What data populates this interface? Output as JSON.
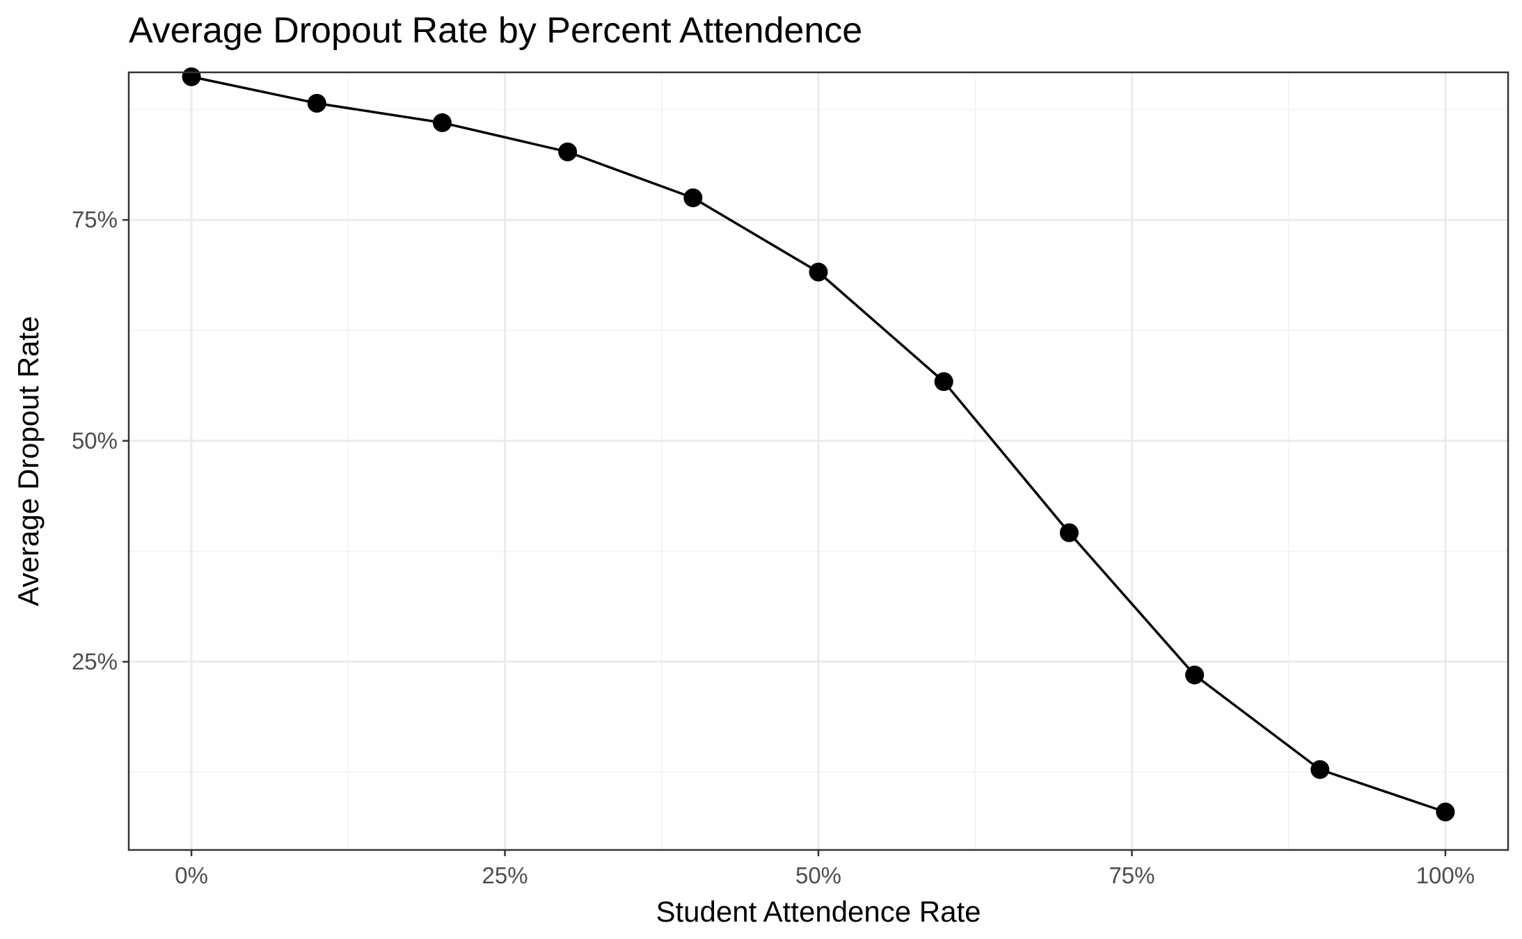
{
  "chart_data": {
    "type": "line",
    "title": "Average Dropout Rate by Percent Attendence",
    "xlabel": "Student Attendence Rate",
    "ylabel": "Average Dropout Rate",
    "x_ticks": [
      {
        "value": 0,
        "label": "0%"
      },
      {
        "value": 25,
        "label": "25%"
      },
      {
        "value": 50,
        "label": "50%"
      },
      {
        "value": 75,
        "label": "75%"
      },
      {
        "value": 100,
        "label": "100%"
      }
    ],
    "y_ticks": [
      {
        "value": 25,
        "label": "25%"
      },
      {
        "value": 50,
        "label": "50%"
      },
      {
        "value": 75,
        "label": "75%"
      }
    ],
    "xlim": [
      -5,
      105
    ],
    "ylim": [
      3.7,
      91.7
    ],
    "grid": true,
    "legend": "none",
    "x": [
      0,
      10,
      20,
      30,
      40,
      50,
      60,
      70,
      80,
      90,
      100
    ],
    "series": [
      {
        "values": [
          91.2,
          88.2,
          86.0,
          82.7,
          77.5,
          69.1,
          56.7,
          39.6,
          23.5,
          12.8,
          8.0
        ],
        "color": "#000000"
      }
    ],
    "colors": {
      "panel_border": "#333333",
      "grid_major": "#ebebeb",
      "grid_minor": "#f2f2f2",
      "tick_text": "#4d4d4d"
    }
  }
}
